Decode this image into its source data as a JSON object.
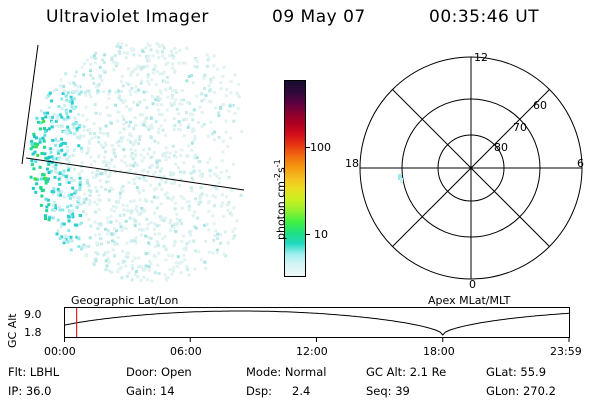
{
  "header": {
    "title": "Ultraviolet Imager",
    "date": "09 May 07",
    "time": "00:35:46 UT"
  },
  "colorbar": {
    "label_main": "photon cm",
    "label_sup1": "-2",
    "label_mid": "s",
    "label_sup2": "-1",
    "ticks": [
      "100",
      "10"
    ],
    "colors": [
      "#1a0d2e",
      "#2e0a3a",
      "#5a0040",
      "#8a0030",
      "#b00020",
      "#d4101a",
      "#e83a10",
      "#f07010",
      "#f59a10",
      "#f5c020",
      "#e8e020",
      "#c8f020",
      "#90f030",
      "#40f040",
      "#20e080",
      "#20d8c0",
      "#a0f0f0",
      "#d8f4f4",
      "#f0f8f8"
    ]
  },
  "polar": {
    "mlt_labels": [
      "12",
      "18",
      "6",
      "0"
    ],
    "lat_labels": [
      "60",
      "70",
      "80"
    ]
  },
  "timeline": {
    "ylabel": "GC Alt",
    "yticks": [
      "9.0",
      "1.8"
    ],
    "left_title": "Geographic Lat/Lon",
    "right_title": "Apex  MLat/MLT",
    "xticks": [
      "00:00",
      "06:00",
      "12:00",
      "18:00",
      "23:59"
    ],
    "current_marker_hour": 0.6
  },
  "info": {
    "flt": "Flt: LBHL",
    "ip": "IP: 36.0",
    "door": "Door: Open",
    "gain": "Gain: 14",
    "mode": "Mode: Normal",
    "dsp_label": "Dsp:",
    "dsp_value": "2.4",
    "gc_alt": "GC Alt: 2.1 Re",
    "seq": "Seq: 39",
    "glat": "GLat:  55.9",
    "glon": "GLon: 270.2"
  }
}
